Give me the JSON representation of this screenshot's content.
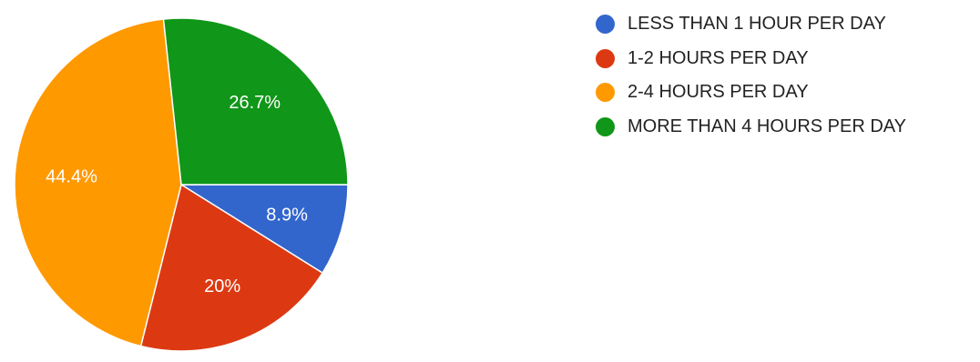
{
  "chart_data": {
    "type": "pie",
    "title": "",
    "start_angle_deg": 90,
    "direction": "clockwise",
    "legend_position": "right",
    "slices": [
      {
        "label": "LESS THAN 1 HOUR PER DAY",
        "value": 8.9,
        "display": "8.9%",
        "color": "#3366cc"
      },
      {
        "label": "1-2 HOURS PER DAY",
        "value": 20,
        "display": "20%",
        "color": "#dc3912"
      },
      {
        "label": "2-4 HOURS PER DAY",
        "value": 44.4,
        "display": "44.4%",
        "color": "#ff9900"
      },
      {
        "label": "MORE THAN 4 HOURS PER DAY",
        "value": 26.7,
        "display": "26.7%",
        "color": "#109618"
      }
    ]
  }
}
